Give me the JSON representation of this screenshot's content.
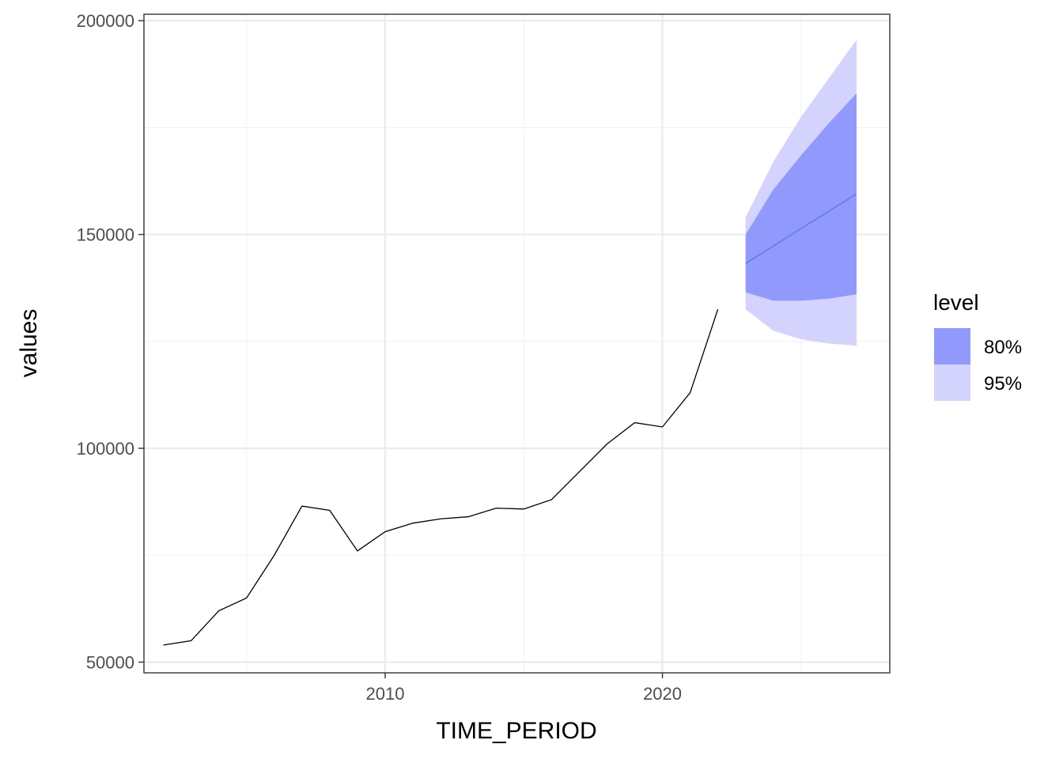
{
  "chart_data": {
    "type": "line",
    "xlabel": "TIME_PERIOD",
    "ylabel": "values",
    "xlim": [
      2001.3,
      2028.2
    ],
    "ylim": [
      47500,
      201500
    ],
    "x_ticks_major": [
      2010,
      2020
    ],
    "x_ticks_minor": [
      2005,
      2015,
      2025
    ],
    "y_ticks_major": [
      50000,
      100000,
      150000,
      200000
    ],
    "y_ticks_minor": [
      75000,
      125000,
      175000
    ],
    "grid": true,
    "legend_position": "right",
    "legend_title": "level",
    "legend": [
      {
        "label": "80%",
        "color": "#9199fd"
      },
      {
        "label": "95%",
        "color": "#d3d3fe"
      }
    ],
    "history": {
      "color": "#000000",
      "x": [
        2002,
        2003,
        2004,
        2005,
        2006,
        2007,
        2008,
        2009,
        2010,
        2011,
        2012,
        2013,
        2014,
        2015,
        2016,
        2017,
        2018,
        2019,
        2020,
        2021,
        2022
      ],
      "y": [
        54000,
        55000,
        62000,
        65000,
        75000,
        86500,
        85500,
        76000,
        80500,
        82500,
        83500,
        84000,
        86000,
        85800,
        88000,
        94500,
        101000,
        106000,
        105000,
        113000,
        132500
      ]
    },
    "forecast": {
      "color": "#5378f5",
      "x": [
        2023,
        2024,
        2025,
        2026,
        2027
      ],
      "mean": [
        143200,
        147300,
        151400,
        155400,
        159500
      ],
      "lo80": [
        136500,
        134500,
        134500,
        135000,
        136000
      ],
      "hi80": [
        150000,
        160500,
        168500,
        176000,
        183000
      ],
      "lo95": [
        132500,
        127500,
        125500,
        124500,
        124000
      ],
      "hi95": [
        154000,
        167000,
        177500,
        186500,
        195500
      ]
    }
  }
}
